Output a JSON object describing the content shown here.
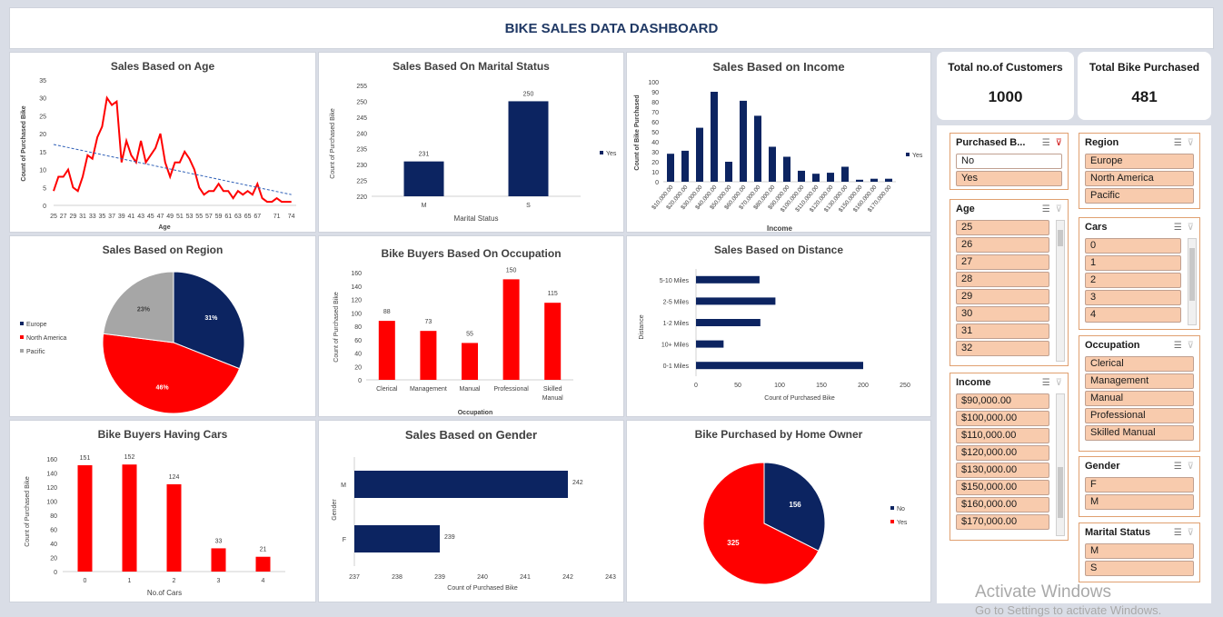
{
  "dashboard_title": "BIKE SALES DATA DASHBOARD",
  "kpis": [
    {
      "label": "Total no.of Customers",
      "value": "1000"
    },
    {
      "label": "Total Bike Purchased",
      "value": "481"
    }
  ],
  "charts": {
    "age": {
      "title": "Sales Based on Age",
      "xlabel": "Age",
      "ylabel": "Count of Purchased Bike"
    },
    "marital": {
      "title": "Sales Based On Marital Status",
      "xlabel": "Marital Status",
      "ylabel": "Count of Purchased Bike",
      "legend": "Yes"
    },
    "income": {
      "title": "Sales Based on Income",
      "xlabel": "Income",
      "ylabel": "Count of Bike Purchased",
      "legend": "Yes"
    },
    "region": {
      "title": "Sales Based on Region"
    },
    "occupation": {
      "title": "Bike Buyers Based On Occupation",
      "xlabel": "Occupation",
      "ylabel": "Count of Purchased Bike"
    },
    "distance": {
      "title": "Sales Based on Distance",
      "xlabel": "Count of Purchased Bike",
      "ylabel": "Distance"
    },
    "cars": {
      "title": "Bike Buyers Having Cars",
      "xlabel": "No.of Cars",
      "ylabel": "Count of Purchased Bike"
    },
    "gender": {
      "title": "Sales Based on Gender",
      "xlabel": "Count of Purchased Bike",
      "ylabel": "Gender"
    },
    "home": {
      "title": "Bike Purchased by Home Owner"
    }
  },
  "chart_data": [
    {
      "type": "line",
      "title": "Sales Based on Age",
      "xlabel": "Age",
      "ylabel": "Count of Purchased Bike",
      "ylim": [
        0,
        35
      ],
      "yticks": [
        0,
        5,
        10,
        15,
        20,
        25,
        30,
        35
      ],
      "xticks": [
        "25",
        "27",
        "29",
        "31",
        "33",
        "35",
        "37",
        "39",
        "41",
        "43",
        "45",
        "47",
        "49",
        "51",
        "53",
        "55",
        "57",
        "59",
        "61",
        "63",
        "65",
        "67",
        "71",
        "74"
      ],
      "x": [
        25,
        26,
        27,
        28,
        29,
        30,
        31,
        32,
        33,
        34,
        35,
        36,
        37,
        38,
        39,
        40,
        41,
        42,
        43,
        44,
        45,
        46,
        47,
        48,
        49,
        50,
        51,
        52,
        53,
        54,
        55,
        56,
        57,
        58,
        59,
        60,
        61,
        62,
        63,
        64,
        65,
        66,
        67,
        68,
        69,
        70,
        71,
        72,
        73,
        74
      ],
      "values": [
        4,
        8,
        8,
        10,
        5,
        4,
        8,
        14,
        13,
        19,
        22,
        30,
        28,
        29,
        12,
        18,
        14,
        12,
        18,
        12,
        14,
        16,
        20,
        12,
        8,
        12,
        12,
        15,
        13,
        10,
        5,
        3,
        4,
        4,
        6,
        4,
        4,
        2,
        4,
        3,
        4,
        3,
        6,
        2,
        1,
        1,
        2,
        1,
        1,
        1
      ],
      "trendline": {
        "color": "#2e5fb7",
        "from": [
          25,
          17
        ],
        "to": [
          74,
          3
        ]
      },
      "color": "#ff0000"
    },
    {
      "type": "bar",
      "title": "Sales Based On Marital Status",
      "categories": [
        "M",
        "S"
      ],
      "series": [
        {
          "name": "Yes",
          "values": [
            231,
            250
          ]
        }
      ],
      "ylim": [
        220,
        255
      ],
      "yticks": [
        220,
        225,
        230,
        235,
        240,
        245,
        250,
        255
      ],
      "xlabel": "Marital Status",
      "ylabel": "Count of Purchased Bike",
      "color": "#0c2461"
    },
    {
      "type": "bar",
      "title": "Sales Based on Income",
      "categories": [
        "$10,000.00",
        "$20,000.00",
        "$30,000.00",
        "$40,000.00",
        "$50,000.00",
        "$60,000.00",
        "$70,000.00",
        "$80,000.00",
        "$90,000.00",
        "$100,000.00",
        "$110,000.00",
        "$120,000.00",
        "$130,000.00",
        "$150,000.00",
        "$160,000.00",
        "$170,000.00"
      ],
      "series": [
        {
          "name": "Yes",
          "values": [
            28,
            31,
            54,
            90,
            20,
            81,
            66,
            35,
            25,
            11,
            8,
            9,
            15,
            2,
            3,
            3
          ]
        }
      ],
      "ylim": [
        0,
        100
      ],
      "yticks": [
        0,
        10,
        20,
        30,
        40,
        50,
        60,
        70,
        80,
        90,
        100
      ],
      "xlabel": "Income",
      "ylabel": "Count of Bike Purchased",
      "color": "#0c2461"
    },
    {
      "type": "pie",
      "title": "Sales Based on Region",
      "labels": [
        "Europe",
        "North America",
        "Pacific"
      ],
      "values": [
        31,
        46,
        23
      ],
      "data_labels": [
        "31%",
        "46%",
        "23%"
      ],
      "colors": [
        "#0c2461",
        "#ff0000",
        "#a6a6a6"
      ],
      "legend": "left"
    },
    {
      "type": "bar",
      "title": "Bike Buyers Based On Occupation",
      "categories": [
        "Clerical",
        "Management",
        "Manual",
        "Professional",
        "Skilled Manual"
      ],
      "values": [
        88,
        73,
        55,
        150,
        115
      ],
      "ylim": [
        0,
        160
      ],
      "yticks": [
        0,
        20,
        40,
        60,
        80,
        100,
        120,
        140,
        160
      ],
      "xlabel": "Occupation",
      "ylabel": "Count of Purchased Bike",
      "color": "#ff0000"
    },
    {
      "type": "bar",
      "orientation": "horizontal",
      "title": "Sales Based on Distance",
      "categories": [
        "5-10 Miles",
        "2-5 Miles",
        "1-2 Miles",
        "10+ Miles",
        "0-1 Miles"
      ],
      "values": [
        76,
        95,
        77,
        33,
        200
      ],
      "xlim": [
        0,
        250
      ],
      "xticks": [
        0,
        50,
        100,
        150,
        200,
        250
      ],
      "xlabel": "Count of Purchased Bike",
      "ylabel": "Distance",
      "color": "#0c2461"
    },
    {
      "type": "bar",
      "title": "Bike Buyers Having Cars",
      "categories": [
        "0",
        "1",
        "2",
        "3",
        "4"
      ],
      "values": [
        151,
        152,
        124,
        33,
        21
      ],
      "ylim": [
        0,
        160
      ],
      "yticks": [
        0,
        20,
        40,
        60,
        80,
        100,
        120,
        140,
        160
      ],
      "xlabel": "No.of Cars",
      "ylabel": "Count of Purchased Bike",
      "color": "#ff0000"
    },
    {
      "type": "bar",
      "orientation": "horizontal",
      "title": "Sales Based on Gender",
      "categories": [
        "M",
        "F"
      ],
      "values": [
        242,
        239
      ],
      "xlim": [
        237,
        243
      ],
      "xticks": [
        237,
        238,
        239,
        240,
        241,
        242,
        243
      ],
      "xlabel": "Count of Purchased Bike",
      "ylabel": "Gender",
      "color": "#0c2461"
    },
    {
      "type": "pie",
      "title": "Bike Purchased by Home Owner",
      "labels": [
        "No",
        "Yes"
      ],
      "values": [
        156,
        325
      ],
      "data_labels": [
        "156",
        "325"
      ],
      "colors": [
        "#0c2461",
        "#ff0000"
      ],
      "legend": "right"
    }
  ],
  "slicers": {
    "purchased": {
      "title": "Purchased B...",
      "items": [
        "No",
        "Yes"
      ]
    },
    "region": {
      "title": "Region",
      "items": [
        "Europe",
        "North America",
        "Pacific"
      ]
    },
    "age": {
      "title": "Age",
      "items": [
        "25",
        "26",
        "27",
        "28",
        "29",
        "30",
        "31",
        "32"
      ]
    },
    "cars": {
      "title": "Cars",
      "items": [
        "0",
        "1",
        "2",
        "3",
        "4"
      ]
    },
    "occupation": {
      "title": "Occupation",
      "items": [
        "Clerical",
        "Management",
        "Manual",
        "Professional",
        "Skilled Manual"
      ]
    },
    "income": {
      "title": "Income",
      "items": [
        "$90,000.00",
        "$100,000.00",
        "$110,000.00",
        "$120,000.00",
        "$130,000.00",
        "$150,000.00",
        "$160,000.00",
        "$170,000.00"
      ]
    },
    "gender": {
      "title": "Gender",
      "items": [
        "F",
        "M"
      ]
    },
    "marital": {
      "title": "Marital Status",
      "items": [
        "M",
        "S"
      ]
    }
  },
  "watermark": {
    "line1": "Activate Windows",
    "line2": "Go to Settings to activate Windows."
  }
}
